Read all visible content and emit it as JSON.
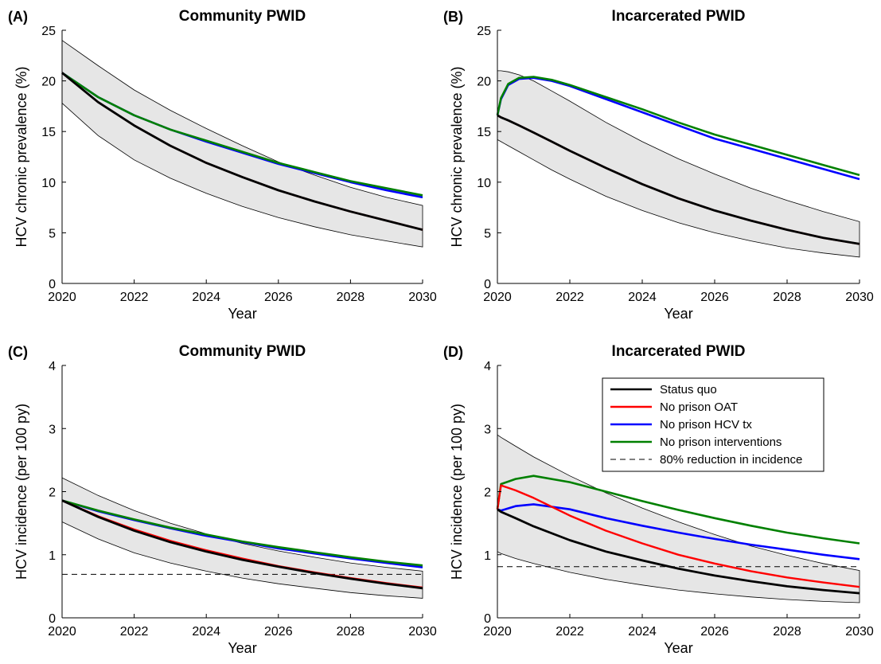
{
  "colors": {
    "status_quo": "#000000",
    "no_oat": "#ff0000",
    "no_hcv": "#0000ff",
    "no_int": "#008000",
    "band": "#e6e6e6"
  },
  "legend": {
    "location": "top-right of panel D",
    "entries": [
      "Status quo",
      "No prison OAT",
      "No prison HCV tx",
      "No prison interventions",
      "80% reduction in incidence"
    ]
  },
  "chart_data": [
    {
      "type": "line",
      "panel": "(A)",
      "title": "Community PWID",
      "xlabel": "Year",
      "ylabel": "HCV chronic prevalence (%)",
      "xlim": [
        2020,
        2030
      ],
      "ylim": [
        0,
        25
      ],
      "xticks": [
        "2020",
        "2022",
        "2024",
        "2026",
        "2028",
        "2030"
      ],
      "yticks": [
        "0",
        "5",
        "10",
        "15",
        "20",
        "25"
      ],
      "x": [
        2020,
        2021,
        2022,
        2023,
        2024,
        2025,
        2026,
        2027,
        2028,
        2029,
        2030
      ],
      "band": {
        "upper": [
          24.0,
          21.5,
          19.1,
          17.1,
          15.3,
          13.6,
          12.0,
          10.7,
          9.5,
          8.5,
          7.7
        ],
        "lower": [
          17.8,
          14.6,
          12.2,
          10.4,
          8.9,
          7.6,
          6.5,
          5.6,
          4.8,
          4.2,
          3.6
        ]
      },
      "series": [
        {
          "name": "Status quo",
          "key": "status_quo",
          "values": [
            20.8,
            17.9,
            15.6,
            13.6,
            11.9,
            10.5,
            9.2,
            8.1,
            7.1,
            6.2,
            5.3
          ]
        },
        {
          "name": "No prison OAT",
          "key": "no_oat",
          "values": [
            20.8,
            17.9,
            15.6,
            13.6,
            11.9,
            10.5,
            9.2,
            8.1,
            7.1,
            6.2,
            5.3
          ]
        },
        {
          "name": "No prison HCV tx",
          "key": "no_hcv",
          "values": [
            20.8,
            18.4,
            16.6,
            15.2,
            14.0,
            12.9,
            11.8,
            10.9,
            10.0,
            9.2,
            8.5
          ]
        },
        {
          "name": "No prison interventions",
          "key": "no_int",
          "values": [
            20.8,
            18.4,
            16.6,
            15.2,
            14.1,
            13.0,
            11.9,
            11.0,
            10.1,
            9.4,
            8.7
          ]
        }
      ]
    },
    {
      "type": "line",
      "panel": "(B)",
      "title": "Incarcerated PWID",
      "xlabel": "Year",
      "ylabel": "HCV chronic prevalence (%)",
      "xlim": [
        2020,
        2030
      ],
      "ylim": [
        0,
        25
      ],
      "xticks": [
        "2020",
        "2022",
        "2024",
        "2026",
        "2028",
        "2030"
      ],
      "yticks": [
        "0",
        "5",
        "10",
        "15",
        "20",
        "25"
      ],
      "x": [
        2020,
        2020.1,
        2020.3,
        2020.6,
        2021,
        2021.5,
        2022,
        2023,
        2024,
        2025,
        2026,
        2027,
        2028,
        2029,
        2030
      ],
      "band": {
        "upper": [
          21.0,
          21.0,
          20.9,
          20.6,
          20.0,
          19.0,
          18.0,
          15.9,
          14.0,
          12.3,
          10.8,
          9.4,
          8.2,
          7.1,
          6.1
        ],
        "lower": [
          14.2,
          14.0,
          13.6,
          13.0,
          12.2,
          11.2,
          10.3,
          8.6,
          7.2,
          6.0,
          5.0,
          4.2,
          3.5,
          3.0,
          2.6
        ]
      },
      "series": [
        {
          "name": "Status quo",
          "key": "status_quo",
          "values": [
            16.6,
            16.4,
            16.1,
            15.6,
            14.9,
            14.0,
            13.1,
            11.4,
            9.8,
            8.4,
            7.2,
            6.2,
            5.3,
            4.5,
            3.9
          ]
        },
        {
          "name": "No prison OAT",
          "key": "no_oat",
          "values": [
            16.6,
            16.4,
            16.1,
            15.6,
            14.9,
            14.0,
            13.1,
            11.4,
            9.8,
            8.4,
            7.2,
            6.2,
            5.3,
            4.5,
            3.9
          ]
        },
        {
          "name": "No prison HCV tx",
          "key": "no_hcv",
          "values": [
            16.6,
            18.2,
            19.6,
            20.2,
            20.3,
            20.0,
            19.5,
            18.2,
            16.9,
            15.6,
            14.3,
            13.3,
            12.3,
            11.3,
            10.3
          ]
        },
        {
          "name": "No prison interventions",
          "key": "no_int",
          "values": [
            16.6,
            18.3,
            19.7,
            20.3,
            20.4,
            20.1,
            19.6,
            18.4,
            17.2,
            15.9,
            14.7,
            13.7,
            12.7,
            11.7,
            10.7
          ]
        }
      ]
    },
    {
      "type": "line",
      "panel": "(C)",
      "title": "Community PWID",
      "xlabel": "Year",
      "ylabel": "HCV incidence (per 100 py)",
      "xlim": [
        2020,
        2030
      ],
      "ylim": [
        0,
        4
      ],
      "xticks": [
        "2020",
        "2022",
        "2024",
        "2026",
        "2028",
        "2030"
      ],
      "yticks": [
        "0",
        "1",
        "2",
        "3",
        "4"
      ],
      "x": [
        2020,
        2021,
        2022,
        2023,
        2024,
        2025,
        2026,
        2027,
        2028,
        2029,
        2030
      ],
      "band": {
        "upper": [
          2.22,
          1.94,
          1.7,
          1.5,
          1.33,
          1.18,
          1.06,
          0.96,
          0.87,
          0.8,
          0.74
        ],
        "lower": [
          1.52,
          1.25,
          1.03,
          0.87,
          0.74,
          0.63,
          0.54,
          0.47,
          0.4,
          0.35,
          0.31
        ]
      },
      "reference_line": {
        "name": "80% reduction in incidence",
        "value": 0.69
      },
      "series": [
        {
          "name": "Status quo",
          "key": "status_quo",
          "values": [
            1.86,
            1.6,
            1.38,
            1.2,
            1.05,
            0.92,
            0.81,
            0.71,
            0.62,
            0.54,
            0.47
          ]
        },
        {
          "name": "No prison OAT",
          "key": "no_oat",
          "values": [
            1.86,
            1.61,
            1.4,
            1.22,
            1.07,
            0.94,
            0.82,
            0.72,
            0.63,
            0.55,
            0.48
          ]
        },
        {
          "name": "No prison HCV tx",
          "key": "no_hcv",
          "values": [
            1.86,
            1.69,
            1.55,
            1.42,
            1.3,
            1.2,
            1.1,
            1.02,
            0.94,
            0.87,
            0.8
          ]
        },
        {
          "name": "No prison interventions",
          "key": "no_int",
          "values": [
            1.86,
            1.7,
            1.56,
            1.43,
            1.32,
            1.21,
            1.12,
            1.04,
            0.96,
            0.89,
            0.83
          ]
        }
      ]
    },
    {
      "type": "line",
      "panel": "(D)",
      "title": "Incarcerated PWID",
      "xlabel": "Year",
      "ylabel": "HCV incidence (per 100 py)",
      "xlim": [
        2020,
        2030
      ],
      "ylim": [
        0,
        4
      ],
      "xticks": [
        "2020",
        "2022",
        "2024",
        "2026",
        "2028",
        "2030"
      ],
      "yticks": [
        "0",
        "1",
        "2",
        "3",
        "4"
      ],
      "x": [
        2020,
        2020.1,
        2020.5,
        2021,
        2022,
        2023,
        2024,
        2025,
        2026,
        2027,
        2028,
        2029,
        2030
      ],
      "band": {
        "upper": [
          2.9,
          2.86,
          2.72,
          2.55,
          2.25,
          1.98,
          1.74,
          1.52,
          1.32,
          1.14,
          0.99,
          0.86,
          0.75
        ],
        "lower": [
          1.05,
          1.02,
          0.94,
          0.86,
          0.72,
          0.61,
          0.52,
          0.44,
          0.38,
          0.33,
          0.29,
          0.26,
          0.24
        ]
      },
      "reference_line": {
        "name": "80% reduction in incidence",
        "value": 0.81
      },
      "series": [
        {
          "name": "Status quo",
          "key": "status_quo",
          "values": [
            1.72,
            1.68,
            1.58,
            1.45,
            1.23,
            1.05,
            0.91,
            0.78,
            0.67,
            0.58,
            0.5,
            0.44,
            0.39
          ]
        },
        {
          "name": "No prison OAT",
          "key": "no_oat",
          "values": [
            1.72,
            2.1,
            2.02,
            1.9,
            1.62,
            1.38,
            1.18,
            1.0,
            0.86,
            0.74,
            0.64,
            0.56,
            0.49
          ]
        },
        {
          "name": "No prison HCV tx",
          "key": "no_hcv",
          "values": [
            1.72,
            1.7,
            1.77,
            1.8,
            1.72,
            1.58,
            1.46,
            1.35,
            1.25,
            1.16,
            1.08,
            1.0,
            0.93
          ]
        },
        {
          "name": "No prison interventions",
          "key": "no_int",
          "values": [
            1.72,
            2.12,
            2.2,
            2.25,
            2.15,
            2.0,
            1.85,
            1.71,
            1.58,
            1.46,
            1.35,
            1.26,
            1.18
          ]
        }
      ]
    }
  ]
}
